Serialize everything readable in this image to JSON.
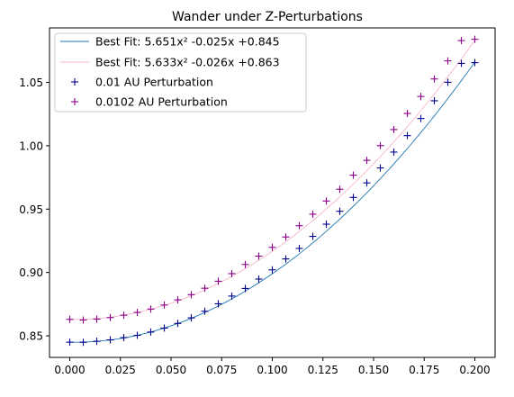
{
  "chart_data": {
    "type": "line",
    "title": "Wander under Z-Perturbations",
    "xlabel": "",
    "ylabel": "",
    "xlim": [
      -0.01,
      0.21
    ],
    "ylim": [
      0.833,
      1.093
    ],
    "xticks": [
      0.0,
      0.025,
      0.05,
      0.075,
      0.1,
      0.125,
      0.15,
      0.175,
      0.2
    ],
    "xtick_labels": [
      "0.000",
      "0.025",
      "0.050",
      "0.075",
      "0.100",
      "0.125",
      "0.150",
      "0.175",
      "0.200"
    ],
    "yticks": [
      0.85,
      0.9,
      0.95,
      1.0,
      1.05
    ],
    "ytick_labels": [
      "0.85",
      "0.90",
      "0.95",
      "1.00",
      "1.05"
    ],
    "grid": false,
    "legend_position": "top-left",
    "x": [
      0.0,
      0.00667,
      0.01333,
      0.02,
      0.02667,
      0.03333,
      0.04,
      0.04667,
      0.05333,
      0.06,
      0.06667,
      0.07333,
      0.08,
      0.08667,
      0.09333,
      0.1,
      0.10667,
      0.11333,
      0.12,
      0.12667,
      0.13333,
      0.14,
      0.14667,
      0.15333,
      0.16,
      0.16667,
      0.17333,
      0.18,
      0.18667,
      0.19333,
      0.2
    ],
    "series": [
      {
        "name": "Best Fit: 5.651x² -0.025x +0.845",
        "kind": "line",
        "color": "#1f77b4",
        "coef": [
          5.651,
          -0.025,
          0.845
        ]
      },
      {
        "name": "Best Fit: 5.633x² -0.026x +0.863",
        "kind": "line",
        "color": "#f4b6c8",
        "coef": [
          5.633,
          -0.026,
          0.863
        ]
      },
      {
        "name": "0.01 AU Perturbation",
        "kind": "marker",
        "marker": "+",
        "color": "#00008b",
        "values": [
          0.845,
          0.8449,
          0.8457,
          0.8468,
          0.8486,
          0.8504,
          0.853,
          0.8561,
          0.8598,
          0.8642,
          0.8694,
          0.8753,
          0.8814,
          0.8874,
          0.8948,
          0.9021,
          0.9107,
          0.919,
          0.9285,
          0.9381,
          0.9483,
          0.9592,
          0.9707,
          0.9825,
          0.995,
          1.008,
          1.0215,
          1.0355,
          1.0501,
          1.065,
          1.0656
        ]
      },
      {
        "name": "0.0102 AU Perturbation",
        "kind": "marker",
        "marker": "+",
        "color": "#8b008b",
        "values": [
          0.863,
          0.8625,
          0.8632,
          0.8644,
          0.8663,
          0.8685,
          0.8711,
          0.8743,
          0.8784,
          0.8825,
          0.8876,
          0.8931,
          0.8991,
          0.9063,
          0.9129,
          0.9198,
          0.928,
          0.9369,
          0.946,
          0.9564,
          0.9657,
          0.9768,
          0.9885,
          1.0001,
          1.0128,
          1.0255,
          1.0389,
          1.0527,
          1.067,
          1.083,
          1.084
        ]
      }
    ]
  }
}
